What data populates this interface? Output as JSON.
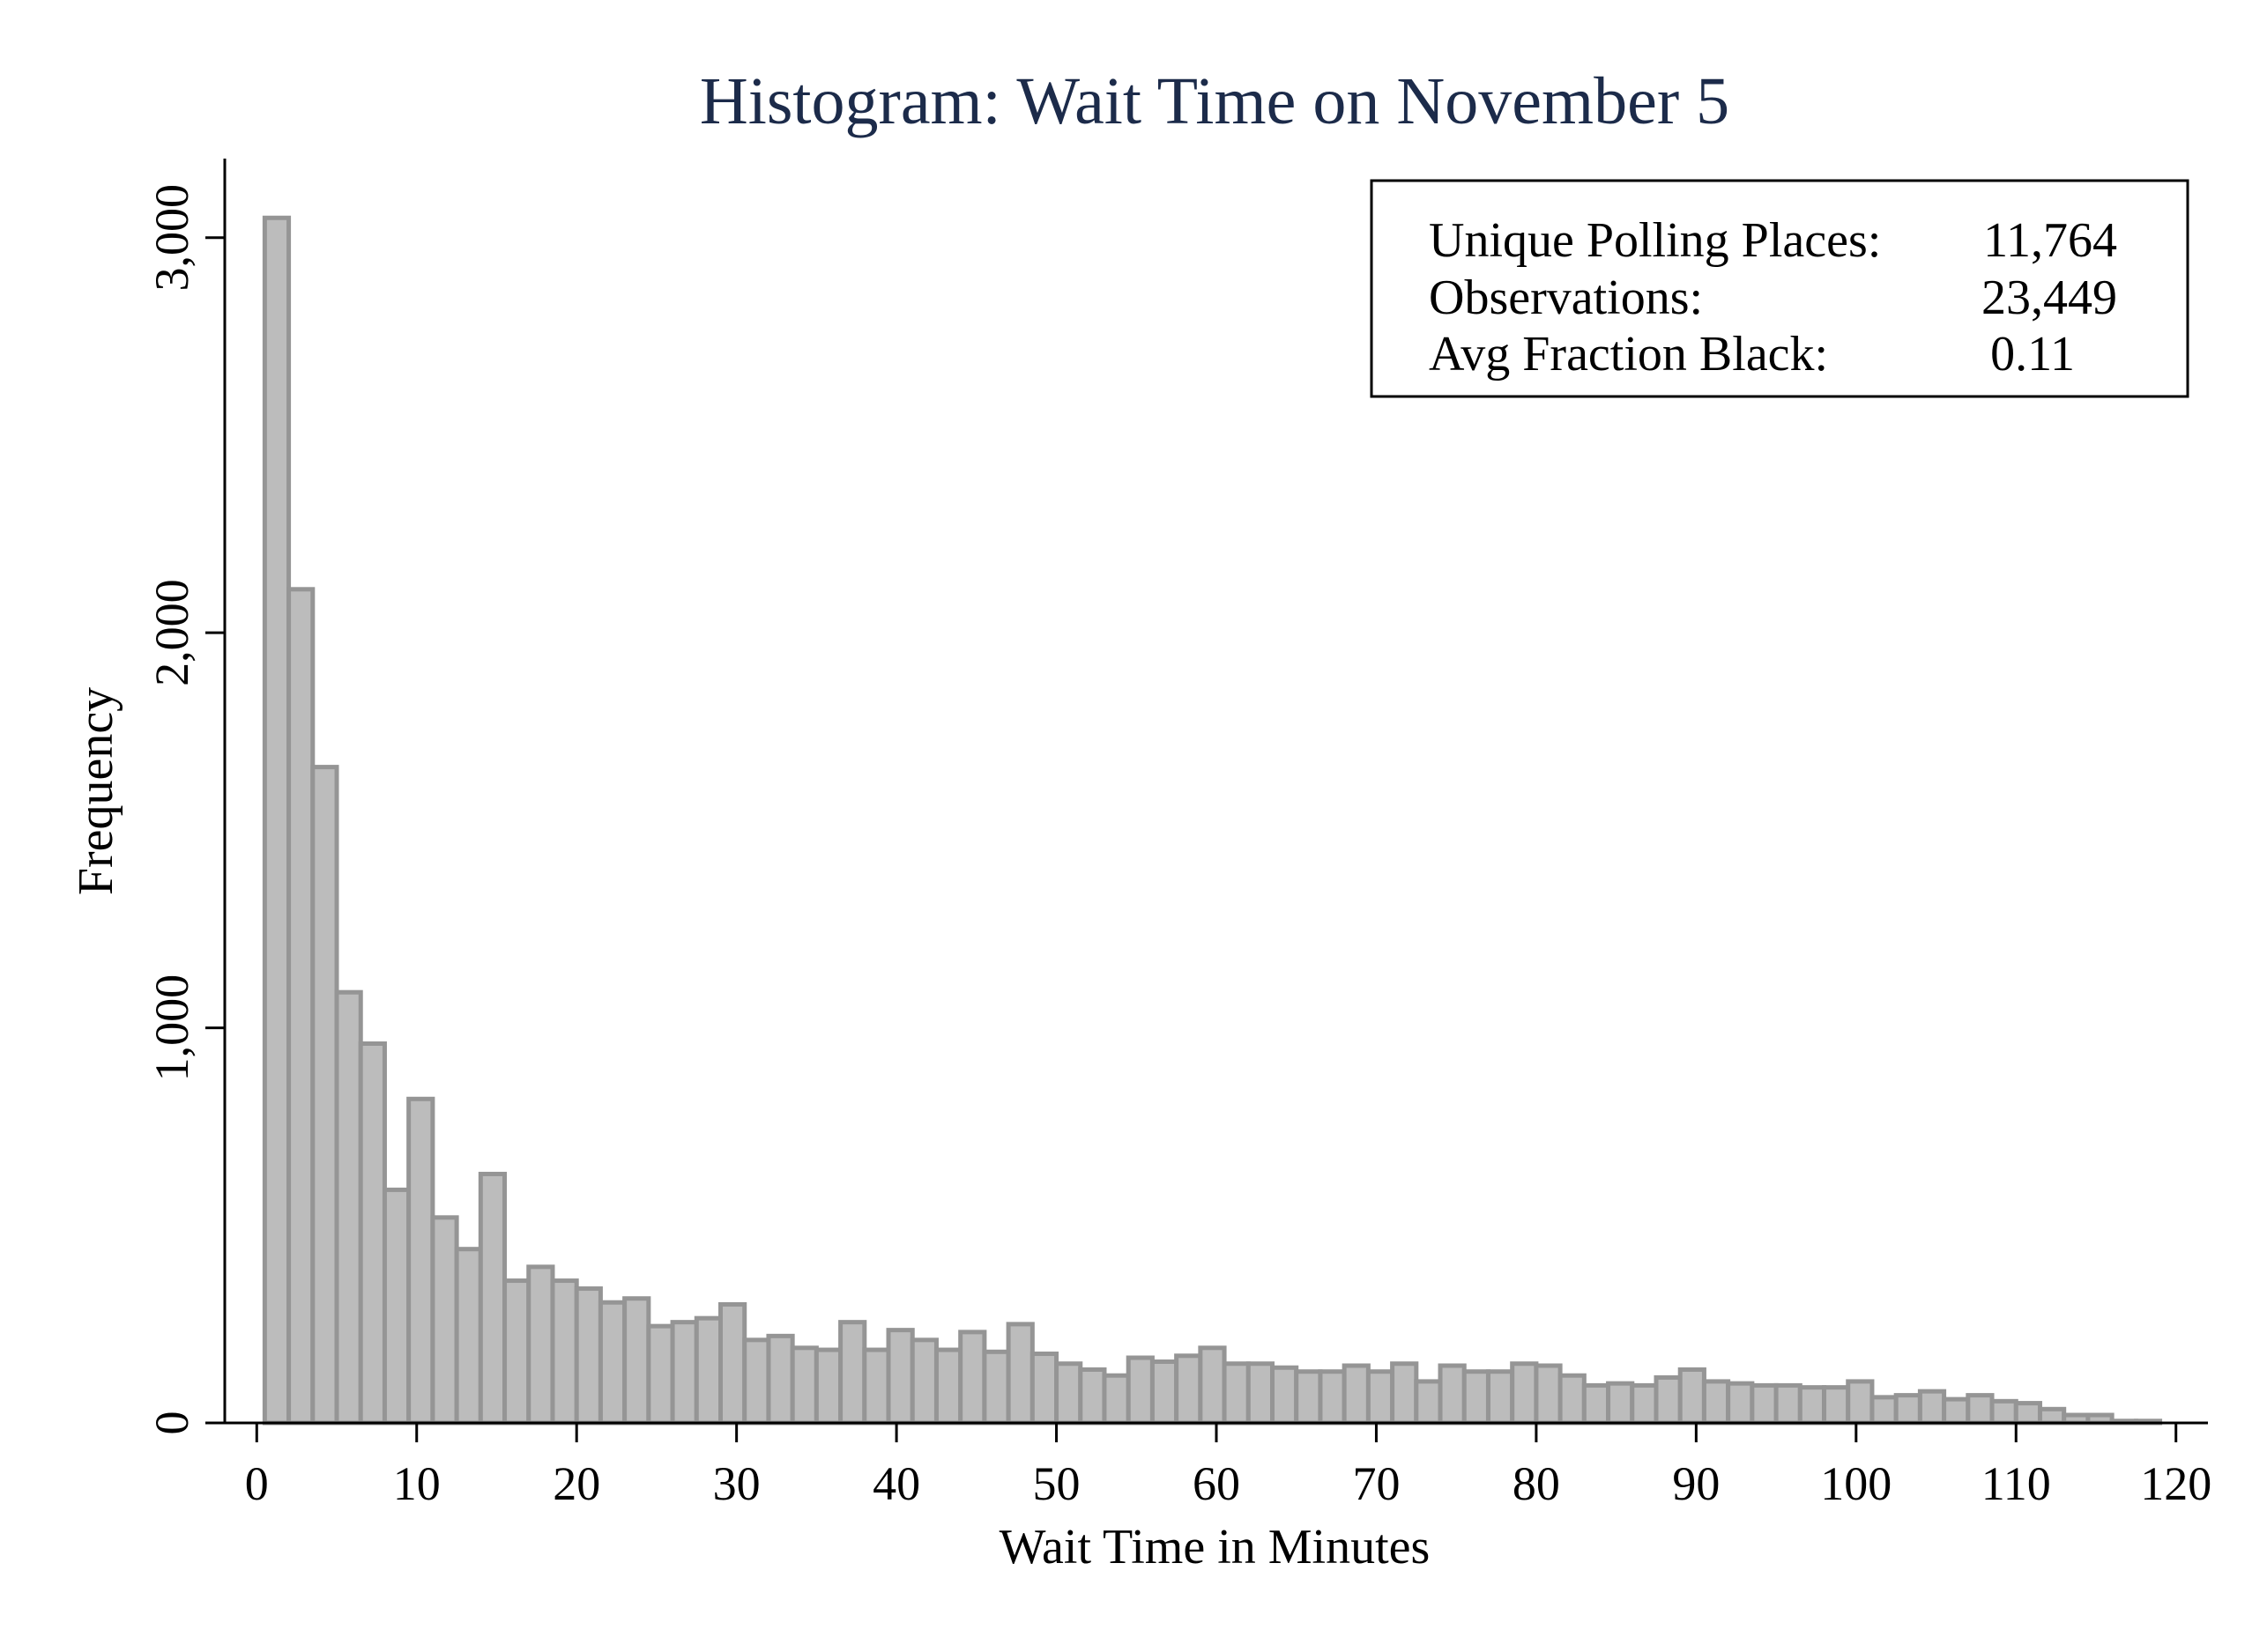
{
  "colors": {
    "background": "#ffffff",
    "title": "#1c2b4a",
    "bar_fill": "#bcbcbc",
    "bar_stroke": "#959595",
    "axis": "#000000"
  },
  "stats_box": {
    "rows": [
      {
        "label": "Unique Polling Places:",
        "value": "11,764"
      },
      {
        "label": "Observations:",
        "value": "23,449"
      },
      {
        "label": "Avg Fraction Black:",
        "value": "0.11"
      }
    ]
  },
  "chart_data": {
    "type": "bar",
    "title": "Histogram: Wait Time on November 5",
    "xlabel": "Wait Time in Minutes",
    "ylabel": "Frequency",
    "xlim": [
      -2,
      122
    ],
    "ylim": [
      0,
      3200
    ],
    "xticks": [
      0,
      10,
      20,
      30,
      40,
      50,
      60,
      70,
      80,
      90,
      100,
      110,
      120
    ],
    "xtick_labels": [
      "0",
      "10",
      "20",
      "30",
      "40",
      "50",
      "60",
      "70",
      "80",
      "90",
      "100",
      "110",
      "120"
    ],
    "yticks": [
      0,
      1000,
      2000,
      3000
    ],
    "ytick_labels": [
      "0",
      "1,000",
      "2,000",
      "3,000"
    ],
    "grid": false,
    "legend": "none",
    "bin_width": 1.5,
    "bin_start": 0.5,
    "bin_starts": [
      0.5,
      2.0,
      3.5,
      5.0,
      6.5,
      8.0,
      9.5,
      11.0,
      12.5,
      14.0,
      15.5,
      17.0,
      18.5,
      20.0,
      21.5,
      23.0,
      24.5,
      26.0,
      27.5,
      29.0,
      30.5,
      32.0,
      33.5,
      35.0,
      36.5,
      38.0,
      39.5,
      41.0,
      42.5,
      44.0,
      45.5,
      47.0,
      48.5,
      50.0,
      51.5,
      53.0,
      54.5,
      56.0,
      57.5,
      59.0,
      60.5,
      62.0,
      63.5,
      65.0,
      66.5,
      68.0,
      69.5,
      71.0,
      72.5,
      74.0,
      75.5,
      77.0,
      78.5,
      80.0,
      81.5,
      83.0,
      84.5,
      86.0,
      87.5,
      89.0,
      90.5,
      92.0,
      93.5,
      95.0,
      96.5,
      98.0,
      99.5,
      101.0,
      102.5,
      104.0,
      105.5,
      107.0,
      108.5,
      110.0,
      111.5,
      113.0,
      114.5,
      116.0,
      117.5
    ],
    "values": [
      3050,
      2110,
      1660,
      1090,
      960,
      590,
      820,
      520,
      440,
      630,
      360,
      395,
      360,
      340,
      305,
      315,
      245,
      255,
      265,
      300,
      210,
      220,
      190,
      185,
      255,
      185,
      235,
      210,
      185,
      230,
      180,
      250,
      175,
      150,
      135,
      120,
      165,
      155,
      170,
      190,
      150,
      150,
      140,
      130,
      130,
      145,
      130,
      150,
      105,
      145,
      130,
      130,
      150,
      145,
      120,
      95,
      100,
      95,
      115,
      135,
      105,
      100,
      95,
      95,
      90,
      90,
      105,
      65,
      70,
      80,
      60,
      70,
      55,
      50,
      35,
      20,
      20,
      5,
      5
    ]
  }
}
